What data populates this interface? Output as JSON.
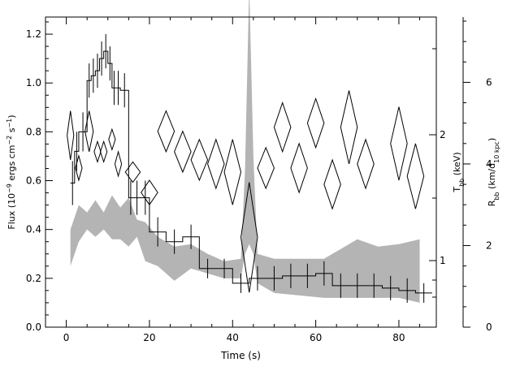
{
  "chart_data": {
    "type": "line",
    "title": "",
    "xlabel": "Time (s)",
    "xlim": [
      -5,
      89
    ],
    "x_ticks": [
      0,
      20,
      40,
      60,
      80
    ],
    "axes": {
      "left": {
        "label": "Flux (10⁻⁹ ergs cm⁻² s⁻¹)",
        "label_parts": [
          {
            "t": "Flux (10"
          },
          {
            "t": "−9",
            "sup": true
          },
          {
            "t": " ergs cm"
          },
          {
            "t": "−2",
            "sup": true
          },
          {
            "t": " s"
          },
          {
            "t": "−1",
            "sup": true
          },
          {
            "t": ")"
          }
        ],
        "ylim": [
          0,
          1.27
        ],
        "ticks": [
          "0.0",
          "0.2",
          "0.4",
          "0.6",
          "0.8",
          "1.0",
          "1.2"
        ]
      },
      "middle": {
        "label": "T_bb (keV)",
        "label_parts": [
          {
            "t": "T"
          },
          {
            "t": "bb",
            "sub": true
          },
          {
            "t": " (keV)"
          }
        ],
        "scale": "log",
        "ticks": [
          "1",
          "2"
        ]
      },
      "right": {
        "label": "R_bb (km/d_10 kpc)",
        "label_parts": [
          {
            "t": "R"
          },
          {
            "t": "bb",
            "sub": true
          },
          {
            "t": " (km/d"
          },
          {
            "t": "10 kpc",
            "sub": true
          },
          {
            "t": ")"
          }
        ],
        "ylim": [
          0,
          7.6
        ],
        "ticks": [
          "0",
          "2",
          "4",
          "6"
        ]
      }
    },
    "series": [
      {
        "kind": "step",
        "axis": "left",
        "edges": [
          1,
          2,
          3,
          5,
          6,
          7,
          8,
          9,
          10,
          11,
          12,
          13,
          15,
          16,
          18,
          20,
          24,
          28,
          32,
          36,
          40,
          44,
          48,
          52,
          56,
          60,
          64,
          68,
          72,
          76,
          80,
          84,
          88
        ],
        "values": [
          0.59,
          0.72,
          0.8,
          1.01,
          1.03,
          1.05,
          1.1,
          1.13,
          1.08,
          0.98,
          0.98,
          0.97,
          0.53,
          0.53,
          0.53,
          0.39,
          0.35,
          0.37,
          0.24,
          0.24,
          0.18,
          0.2,
          0.2,
          0.21,
          0.21,
          0.22,
          0.17,
          0.17,
          0.17,
          0.16,
          0.15,
          0.14
        ],
        "errors": [
          0.09,
          0.08,
          0.08,
          0.07,
          0.07,
          0.07,
          0.07,
          0.07,
          0.07,
          0.07,
          0.07,
          0.07,
          0.07,
          0.07,
          0.07,
          0.06,
          0.05,
          0.05,
          0.04,
          0.04,
          0.04,
          0.05,
          0.05,
          0.05,
          0.05,
          0.05,
          0.05,
          0.05,
          0.05,
          0.05,
          0.05,
          0.04
        ]
      },
      {
        "kind": "diamonds",
        "axis": "right",
        "points": [
          {
            "x": 1.0,
            "dx": 0.8,
            "y": 4.7,
            "dy": 0.6
          },
          {
            "x": 3.0,
            "dx": 0.8,
            "y": 3.9,
            "dy": 0.3
          },
          {
            "x": 5.5,
            "dx": 1.0,
            "y": 4.8,
            "dy": 0.5
          },
          {
            "x": 7.5,
            "dx": 0.8,
            "y": 4.3,
            "dy": 0.25
          },
          {
            "x": 9.0,
            "dx": 0.8,
            "y": 4.3,
            "dy": 0.25
          },
          {
            "x": 11.0,
            "dx": 0.8,
            "y": 4.6,
            "dy": 0.25
          },
          {
            "x": 12.5,
            "dx": 0.8,
            "y": 4.0,
            "dy": 0.3
          },
          {
            "x": 16.0,
            "dx": 1.8,
            "y": 3.8,
            "dy": 0.25
          },
          {
            "x": 20.0,
            "dx": 2.0,
            "y": 3.3,
            "dy": 0.3
          },
          {
            "x": 24.0,
            "dx": 2.0,
            "y": 4.8,
            "dy": 0.5
          },
          {
            "x": 28.0,
            "dx": 2.0,
            "y": 4.3,
            "dy": 0.5
          },
          {
            "x": 32.0,
            "dx": 2.0,
            "y": 4.1,
            "dy": 0.5
          },
          {
            "x": 36.0,
            "dx": 2.0,
            "y": 4.0,
            "dy": 0.6
          },
          {
            "x": 40.0,
            "dx": 2.0,
            "y": 3.8,
            "dy": 0.8
          },
          {
            "x": 44.0,
            "dx": 2.0,
            "y": 2.2,
            "dy": 1.35
          },
          {
            "x": 48.0,
            "dx": 2.0,
            "y": 3.9,
            "dy": 0.5
          },
          {
            "x": 52.0,
            "dx": 2.0,
            "y": 4.9,
            "dy": 0.6
          },
          {
            "x": 56.0,
            "dx": 2.0,
            "y": 3.9,
            "dy": 0.6
          },
          {
            "x": 60.0,
            "dx": 2.0,
            "y": 5.0,
            "dy": 0.6
          },
          {
            "x": 64.0,
            "dx": 2.0,
            "y": 3.5,
            "dy": 0.6
          },
          {
            "x": 68.0,
            "dx": 2.0,
            "y": 4.9,
            "dy": 0.9
          },
          {
            "x": 72.0,
            "dx": 2.0,
            "y": 4.0,
            "dy": 0.6
          },
          {
            "x": 80.0,
            "dx": 2.0,
            "y": 4.5,
            "dy": 0.9
          },
          {
            "x": 84.0,
            "dx": 2.0,
            "y": 3.7,
            "dy": 0.8
          }
        ]
      },
      {
        "kind": "band",
        "axis": "left",
        "x": [
          1,
          3,
          5,
          7,
          9,
          11,
          13,
          15,
          17,
          19,
          22,
          26,
          30,
          34,
          38,
          42,
          43,
          44,
          45,
          46,
          50,
          56,
          62,
          66,
          70,
          75,
          80,
          85
        ],
        "low": [
          0.25,
          0.35,
          0.4,
          0.37,
          0.4,
          0.36,
          0.36,
          0.33,
          0.37,
          0.27,
          0.25,
          0.19,
          0.24,
          0.22,
          0.2,
          0.2,
          0.3,
          0.34,
          0.3,
          0.18,
          0.14,
          0.13,
          0.12,
          0.12,
          0.12,
          0.12,
          0.12,
          0.1
        ],
        "high": [
          0.4,
          0.5,
          0.47,
          0.52,
          0.47,
          0.54,
          0.49,
          0.53,
          0.44,
          0.43,
          0.37,
          0.33,
          0.34,
          0.3,
          0.27,
          0.28,
          0.65,
          1.4,
          0.7,
          0.3,
          0.28,
          0.28,
          0.28,
          0.32,
          0.36,
          0.33,
          0.34,
          0.36
        ]
      }
    ]
  }
}
